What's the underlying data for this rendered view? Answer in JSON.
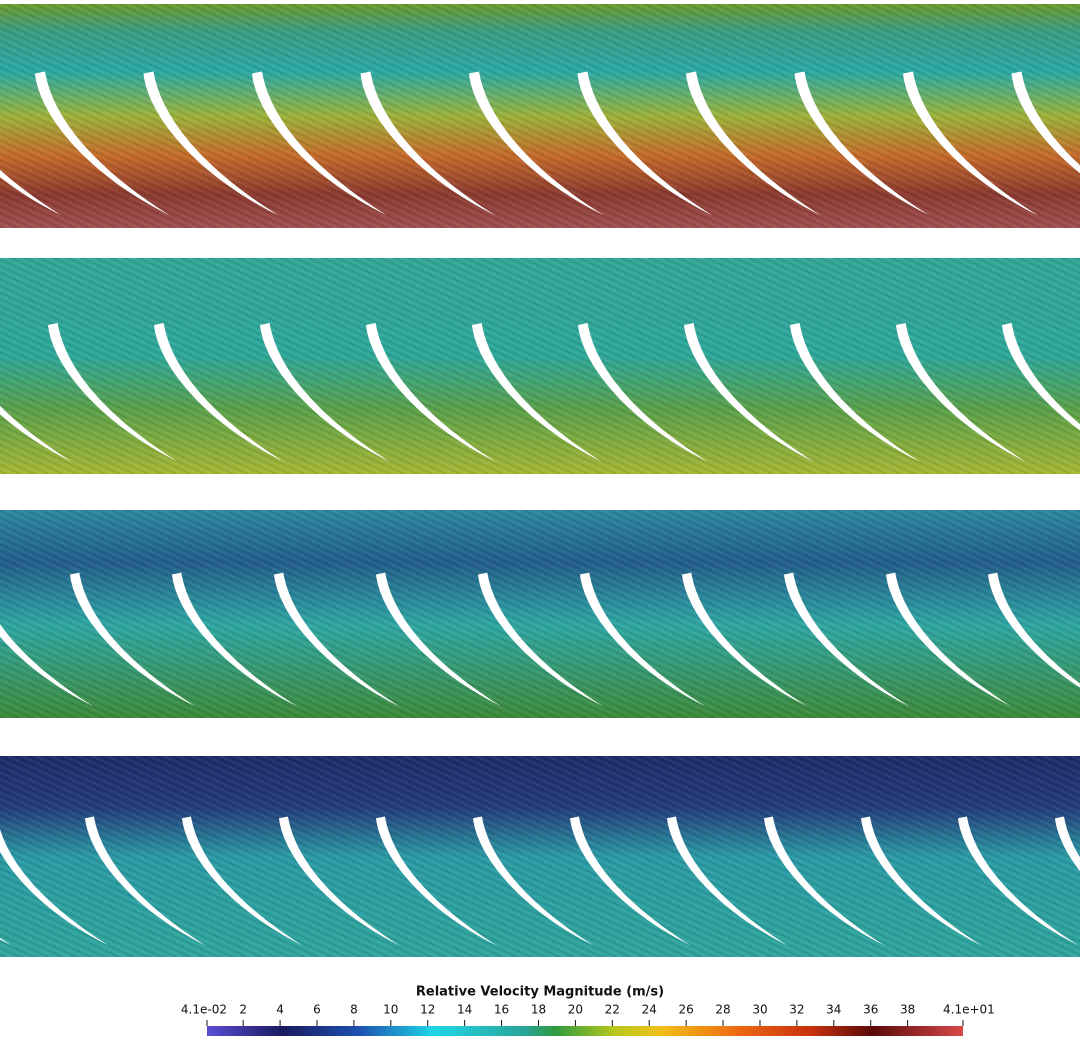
{
  "colorbar": {
    "title": "Relative Velocity Magnitude (m/s)",
    "range": [
      0.041,
      41
    ],
    "ticks": [
      {
        "value": 0.041,
        "label": "4.1e-02"
      },
      2,
      4,
      6,
      8,
      10,
      12,
      14,
      16,
      18,
      20,
      22,
      24,
      26,
      28,
      30,
      32,
      34,
      36,
      38,
      {
        "value": 41,
        "label": "4.1e+01"
      }
    ]
  }
}
